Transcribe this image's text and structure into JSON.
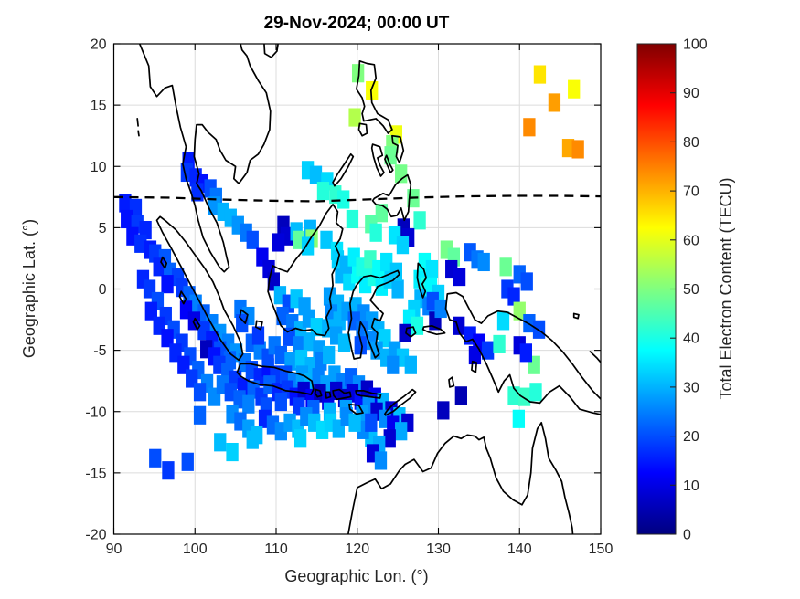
{
  "title": "29-Nov-2024; 00:00 UT",
  "axes": {
    "xlabel": "Geographic Lon. (°)",
    "ylabel": "Geographic Lat. (°)",
    "xticks": [
      90,
      100,
      110,
      120,
      130,
      140,
      150
    ],
    "yticks": [
      20,
      15,
      10,
      5,
      0,
      -5,
      -10,
      -15,
      -20
    ],
    "xlim": [
      90,
      150
    ],
    "ylim": [
      -20,
      20
    ],
    "grid": true
  },
  "colorbar": {
    "label": "Total Electron Content (TECU)",
    "ticks": [
      0,
      10,
      20,
      30,
      40,
      50,
      60,
      70,
      80,
      90,
      100
    ],
    "min": 0,
    "max": 100,
    "colormap": "jet"
  },
  "chart_data": {
    "type": "heatmap",
    "title": "29-Nov-2024; 00:00 UT",
    "xlabel": "Geographic Lon. (°)",
    "ylabel": "Geographic Lat. (°)",
    "value_label": "Total Electron Content (TECU)",
    "xlim": [
      90,
      150
    ],
    "ylim": [
      -20,
      20
    ],
    "clim": [
      0,
      100
    ],
    "cell_size_deg": 1.5,
    "colormap": "jet",
    "grid": true,
    "legend_position": "right-colorbar",
    "dip_equator": [
      [
        90,
        7.5
      ],
      [
        97,
        7.45
      ],
      [
        103,
        7.3
      ],
      [
        109,
        7.2
      ],
      [
        115,
        7.15
      ],
      [
        121,
        7.3
      ],
      [
        127,
        7.45
      ],
      [
        133,
        7.55
      ],
      [
        139,
        7.6
      ],
      [
        145,
        7.6
      ],
      [
        150,
        7.55
      ]
    ],
    "points": [
      [
        142.5,
        17.5,
        65
      ],
      [
        146.7,
        16.3,
        62
      ],
      [
        144.3,
        15.2,
        72
      ],
      [
        141.2,
        13.2,
        74
      ],
      [
        146.0,
        11.5,
        71
      ],
      [
        147.2,
        11.4,
        74
      ],
      [
        120.1,
        17.6,
        50
      ],
      [
        121.8,
        16.2,
        62
      ],
      [
        119.7,
        14.0,
        55
      ],
      [
        124.8,
        12.6,
        61
      ],
      [
        124.3,
        11.8,
        50
      ],
      [
        124.1,
        10.9,
        48
      ],
      [
        125.4,
        9.4,
        49
      ],
      [
        126.9,
        7.4,
        48
      ],
      [
        123.0,
        6.2,
        47
      ],
      [
        127.7,
        5.6,
        42
      ],
      [
        121.7,
        5.3,
        46
      ],
      [
        122.3,
        4.6,
        41
      ],
      [
        125.7,
        5.0,
        6
      ],
      [
        126.3,
        4.2,
        8
      ],
      [
        113.9,
        9.7,
        33
      ],
      [
        114.9,
        9.3,
        31
      ],
      [
        116.3,
        8.8,
        34
      ],
      [
        115.8,
        8.0,
        41
      ],
      [
        117.3,
        7.7,
        42
      ],
      [
        118.3,
        7.3,
        40
      ],
      [
        99.2,
        10.4,
        15
      ],
      [
        99.0,
        9.5,
        18
      ],
      [
        100.1,
        9.1,
        16
      ],
      [
        100.9,
        8.6,
        14
      ],
      [
        101.9,
        8.2,
        20
      ],
      [
        100.3,
        7.9,
        17
      ],
      [
        102.6,
        7.5,
        24
      ],
      [
        91.4,
        7.0,
        15
      ],
      [
        92.7,
        6.6,
        17
      ],
      [
        91.6,
        5.7,
        14
      ],
      [
        92.9,
        5.3,
        18
      ],
      [
        93.9,
        4.8,
        16
      ],
      [
        92.3,
        4.3,
        14
      ],
      [
        93.3,
        3.7,
        17
      ],
      [
        94.5,
        3.2,
        15
      ],
      [
        102.4,
        6.8,
        27
      ],
      [
        103.5,
        6.3,
        30
      ],
      [
        104.4,
        5.8,
        30
      ],
      [
        105.3,
        5.2,
        27
      ],
      [
        106.3,
        4.6,
        24
      ],
      [
        107.1,
        4.0,
        20
      ],
      [
        108.3,
        2.6,
        11
      ],
      [
        109.1,
        1.6,
        9
      ],
      [
        109.7,
        0.6,
        7
      ],
      [
        110.9,
        5.2,
        6
      ],
      [
        111.3,
        4.3,
        8
      ],
      [
        110.3,
        3.8,
        9
      ],
      [
        112.5,
        4.7,
        31
      ],
      [
        112.8,
        4.0,
        47
      ],
      [
        114.2,
        4.9,
        30
      ],
      [
        114.4,
        4.1,
        51
      ],
      [
        116.2,
        4.0,
        32
      ],
      [
        113.9,
        3.5,
        33
      ],
      [
        119.4,
        5.7,
        41
      ],
      [
        117.5,
        3.1,
        35
      ],
      [
        95.1,
        2.9,
        18
      ],
      [
        96.3,
        2.5,
        21
      ],
      [
        95.6,
        1.8,
        16
      ],
      [
        96.9,
        1.4,
        22
      ],
      [
        97.9,
        1.0,
        19
      ],
      [
        96.6,
        0.4,
        14
      ],
      [
        98.4,
        0.1,
        18
      ],
      [
        93.6,
        0.8,
        16
      ],
      [
        94.4,
        0.0,
        18
      ],
      [
        95.4,
        -1.0,
        20
      ],
      [
        94.6,
        -1.8,
        15
      ],
      [
        99.3,
        -0.5,
        22
      ],
      [
        100.1,
        -1.2,
        25
      ],
      [
        98.9,
        -1.7,
        12
      ],
      [
        96.4,
        -2.2,
        18
      ],
      [
        95.6,
        -3.0,
        16
      ],
      [
        101.1,
        -2.0,
        22
      ],
      [
        99.9,
        -2.6,
        10
      ],
      [
        97.4,
        -3.3,
        20
      ],
      [
        96.6,
        -4.0,
        14
      ],
      [
        102.1,
        -2.8,
        25
      ],
      [
        101.1,
        -3.4,
        18
      ],
      [
        98.4,
        -4.4,
        18
      ],
      [
        97.6,
        -5.2,
        16
      ],
      [
        103.1,
        -3.6,
        27
      ],
      [
        102.1,
        -4.2,
        15
      ],
      [
        99.4,
        -5.5,
        20
      ],
      [
        98.6,
        -6.2,
        15
      ],
      [
        104.1,
        -4.4,
        25
      ],
      [
        103.1,
        -5.0,
        20
      ],
      [
        100.4,
        -6.6,
        22
      ],
      [
        105.1,
        -5.2,
        27
      ],
      [
        104.3,
        -5.8,
        22
      ],
      [
        105.6,
        -1.6,
        24
      ],
      [
        106.6,
        -2.2,
        26
      ],
      [
        105.8,
        -2.8,
        20
      ],
      [
        101.4,
        -4.9,
        6
      ],
      [
        102.4,
        -5.5,
        14
      ],
      [
        106.1,
        -6.0,
        24
      ],
      [
        99.6,
        -7.3,
        18
      ],
      [
        101.5,
        -7.7,
        25
      ],
      [
        100.6,
        -8.4,
        20
      ],
      [
        102.4,
        -8.8,
        26
      ],
      [
        103.0,
        -6.2,
        18
      ],
      [
        104.0,
        -6.8,
        22
      ],
      [
        105.0,
        -7.4,
        18
      ],
      [
        106.0,
        -8.0,
        15
      ],
      [
        103.4,
        -7.8,
        24
      ],
      [
        104.4,
        -8.4,
        20
      ],
      [
        105.5,
        -9.0,
        22
      ],
      [
        107.0,
        -6.6,
        20
      ],
      [
        108.0,
        -7.2,
        16
      ],
      [
        107.2,
        -8.2,
        22
      ],
      [
        108.2,
        -8.8,
        18
      ],
      [
        106.6,
        -9.4,
        25
      ],
      [
        109.0,
        -6.4,
        14
      ],
      [
        110.0,
        -7.0,
        18
      ],
      [
        109.2,
        -7.8,
        22
      ],
      [
        110.2,
        -8.4,
        16
      ],
      [
        108.8,
        -9.6,
        20
      ],
      [
        107.0,
        -4.4,
        22
      ],
      [
        108.0,
        -5.0,
        25
      ],
      [
        109.0,
        -5.6,
        20
      ],
      [
        107.8,
        -3.8,
        18
      ],
      [
        109.8,
        -4.6,
        24
      ],
      [
        110.5,
        -0.5,
        30
      ],
      [
        111.5,
        -1.2,
        20
      ],
      [
        112.5,
        -0.8,
        32
      ],
      [
        113.5,
        -1.4,
        28
      ],
      [
        110.8,
        -2.2,
        22
      ],
      [
        112.0,
        -2.8,
        24
      ],
      [
        113.0,
        -3.4,
        30
      ],
      [
        114.0,
        -2.4,
        28
      ],
      [
        115.0,
        -3.1,
        33
      ],
      [
        111.6,
        -3.9,
        20
      ],
      [
        112.8,
        -4.6,
        25
      ],
      [
        114.1,
        -4.3,
        30
      ],
      [
        115.3,
        -4.9,
        28
      ],
      [
        110.6,
        -5.4,
        22
      ],
      [
        111.8,
        -5.9,
        28
      ],
      [
        113.1,
        -5.7,
        32
      ],
      [
        114.3,
        -6.3,
        30
      ],
      [
        115.5,
        -5.9,
        25
      ],
      [
        116.5,
        -5.4,
        30
      ],
      [
        111.2,
        -7.0,
        20
      ],
      [
        112.2,
        -7.6,
        25
      ],
      [
        111.4,
        -8.2,
        18
      ],
      [
        112.4,
        -8.8,
        14
      ],
      [
        110.6,
        -9.2,
        20
      ],
      [
        113.2,
        -7.0,
        28
      ],
      [
        114.2,
        -7.6,
        30
      ],
      [
        113.4,
        -8.3,
        8
      ],
      [
        114.4,
        -8.9,
        12
      ],
      [
        112.8,
        -9.6,
        18
      ],
      [
        115.2,
        -7.2,
        25
      ],
      [
        116.2,
        -7.8,
        28
      ],
      [
        115.4,
        -8.5,
        6
      ],
      [
        116.4,
        -9.1,
        10
      ],
      [
        114.6,
        -9.8,
        22
      ],
      [
        117.2,
        -7.0,
        28
      ],
      [
        118.2,
        -7.6,
        25
      ],
      [
        117.4,
        -8.3,
        8
      ],
      [
        118.4,
        -8.9,
        7
      ],
      [
        116.6,
        -10.0,
        30
      ],
      [
        119.2,
        -7.2,
        22
      ],
      [
        120.2,
        -7.8,
        26
      ],
      [
        119.4,
        -8.5,
        9
      ],
      [
        120.4,
        -9.1,
        14
      ],
      [
        118.6,
        -9.8,
        28
      ],
      [
        121.2,
        -8.2,
        7
      ],
      [
        122.2,
        -8.8,
        11
      ],
      [
        121.4,
        -9.5,
        26
      ],
      [
        123.2,
        -9.2,
        30
      ],
      [
        120.6,
        -10.2,
        28
      ],
      [
        122.4,
        -10.0,
        8
      ],
      [
        124.2,
        -9.9,
        8
      ],
      [
        125.2,
        -10.4,
        31
      ],
      [
        126.2,
        -10.9,
        8
      ],
      [
        123.4,
        -10.6,
        26
      ],
      [
        124.4,
        -11.1,
        11
      ],
      [
        125.4,
        -11.6,
        29
      ],
      [
        124.0,
        -12.2,
        8
      ],
      [
        121.7,
        -12.1,
        31
      ],
      [
        122.7,
        -12.7,
        29
      ],
      [
        121.9,
        -13.4,
        9
      ],
      [
        122.9,
        -14.0,
        26
      ],
      [
        120.7,
        -11.5,
        26
      ],
      [
        121.7,
        -10.9,
        20
      ],
      [
        108.6,
        -10.6,
        16
      ],
      [
        109.6,
        -11.1,
        23
      ],
      [
        110.6,
        -11.6,
        26
      ],
      [
        111.7,
        -10.9,
        28
      ],
      [
        112.7,
        -11.4,
        31
      ],
      [
        113.7,
        -10.4,
        26
      ],
      [
        114.7,
        -10.9,
        31
      ],
      [
        115.7,
        -11.5,
        34
      ],
      [
        116.7,
        -10.9,
        33
      ],
      [
        117.7,
        -11.4,
        30
      ],
      [
        113.0,
        -12.2,
        33
      ],
      [
        118.7,
        -10.4,
        26
      ],
      [
        119.7,
        -10.9,
        31
      ],
      [
        104.6,
        -10.2,
        26
      ],
      [
        105.6,
        -10.8,
        23
      ],
      [
        106.6,
        -11.4,
        28
      ],
      [
        107.6,
        -11.9,
        31
      ],
      [
        100.6,
        -10.3,
        22
      ],
      [
        95.1,
        -13.8,
        20
      ],
      [
        96.7,
        -14.8,
        18
      ],
      [
        99.1,
        -14.1,
        20
      ],
      [
        103.1,
        -12.5,
        31
      ],
      [
        104.6,
        -13.3,
        33
      ],
      [
        107.1,
        -12.3,
        31
      ],
      [
        130.6,
        -9.9,
        6
      ],
      [
        132.8,
        -8.7,
        5
      ],
      [
        139.3,
        -8.7,
        42
      ],
      [
        140.6,
        -8.8,
        43
      ],
      [
        142.0,
        -8.4,
        41
      ],
      [
        139.9,
        -10.6,
        38
      ],
      [
        141.8,
        -6.2,
        48
      ],
      [
        118.0,
        1.2,
        30
      ],
      [
        119.0,
        0.6,
        34
      ],
      [
        120.0,
        1.2,
        38
      ],
      [
        121.0,
        0.4,
        36
      ],
      [
        122.0,
        1.0,
        40
      ],
      [
        123.0,
        0.2,
        36
      ],
      [
        124.0,
        0.8,
        33
      ],
      [
        125.0,
        0.0,
        30
      ],
      [
        117.6,
        2.4,
        33
      ],
      [
        118.6,
        2.0,
        30
      ],
      [
        119.6,
        2.6,
        36
      ],
      [
        120.6,
        1.8,
        40
      ],
      [
        121.6,
        2.4,
        43
      ],
      [
        122.6,
        1.6,
        38
      ],
      [
        123.6,
        2.2,
        35
      ],
      [
        124.8,
        1.4,
        32
      ],
      [
        116.6,
        -0.6,
        28
      ],
      [
        117.6,
        -1.2,
        30
      ],
      [
        116.8,
        -2.0,
        26
      ],
      [
        117.8,
        -2.6,
        30
      ],
      [
        118.8,
        -1.8,
        28
      ],
      [
        116.4,
        -3.2,
        30
      ],
      [
        117.4,
        -3.8,
        28
      ],
      [
        118.4,
        -4.4,
        31
      ],
      [
        119.8,
        -1.4,
        30
      ],
      [
        120.8,
        -2.0,
        26
      ],
      [
        119.6,
        -2.6,
        22
      ],
      [
        121.8,
        -2.6,
        28
      ],
      [
        120.6,
        -3.4,
        24
      ],
      [
        122.6,
        -3.4,
        30
      ],
      [
        121.6,
        -4.2,
        26
      ],
      [
        123.4,
        -4.0,
        33
      ],
      [
        122.4,
        -5.0,
        28
      ],
      [
        120.4,
        -4.6,
        20
      ],
      [
        123.6,
        -5.6,
        30
      ],
      [
        124.6,
        -5.0,
        28
      ],
      [
        125.6,
        -5.6,
        32
      ],
      [
        124.4,
        -6.2,
        26
      ],
      [
        126.6,
        -6.2,
        30
      ],
      [
        124.6,
        4.4,
        35
      ],
      [
        125.6,
        3.6,
        33
      ],
      [
        127.7,
        0.8,
        36
      ],
      [
        128.6,
        0.2,
        40
      ],
      [
        129.4,
        -0.5,
        34
      ],
      [
        127.8,
        -0.8,
        30
      ],
      [
        128.8,
        -1.4,
        25
      ],
      [
        129.6,
        -2.6,
        6
      ],
      [
        127.0,
        -1.6,
        33
      ],
      [
        126.4,
        -2.4,
        36
      ],
      [
        127.4,
        -3.0,
        40
      ],
      [
        125.9,
        -3.6,
        7
      ],
      [
        128.3,
        2.2,
        38
      ],
      [
        129.2,
        1.6,
        35
      ],
      [
        131.0,
        3.2,
        49
      ],
      [
        131.9,
        2.6,
        47
      ],
      [
        133.9,
        3.0,
        21
      ],
      [
        134.8,
        2.4,
        24
      ],
      [
        135.6,
        2.2,
        26
      ],
      [
        131.6,
        1.6,
        8
      ],
      [
        132.6,
        1.0,
        9
      ],
      [
        138.3,
        1.8,
        48
      ],
      [
        140.0,
        1.2,
        22
      ],
      [
        140.9,
        0.6,
        20
      ],
      [
        138.5,
        0.0,
        18
      ],
      [
        139.3,
        -0.6,
        16
      ],
      [
        129.1,
        0.2,
        37
      ],
      [
        130.0,
        -0.4,
        33
      ],
      [
        129.3,
        -1.0,
        20
      ],
      [
        130.3,
        -1.6,
        25
      ],
      [
        140.0,
        -1.8,
        52
      ],
      [
        138.0,
        -2.6,
        34
      ],
      [
        141.2,
        -2.8,
        22
      ],
      [
        142.4,
        -3.3,
        20
      ],
      [
        140.0,
        -4.6,
        9
      ],
      [
        140.8,
        -5.2,
        15
      ],
      [
        132.5,
        -3.0,
        8
      ],
      [
        133.9,
        -3.8,
        15
      ],
      [
        135.0,
        -4.4,
        12
      ],
      [
        136.1,
        -5.0,
        18
      ],
      [
        137.5,
        -4.5,
        42
      ],
      [
        134.5,
        -5.4,
        10
      ]
    ]
  }
}
